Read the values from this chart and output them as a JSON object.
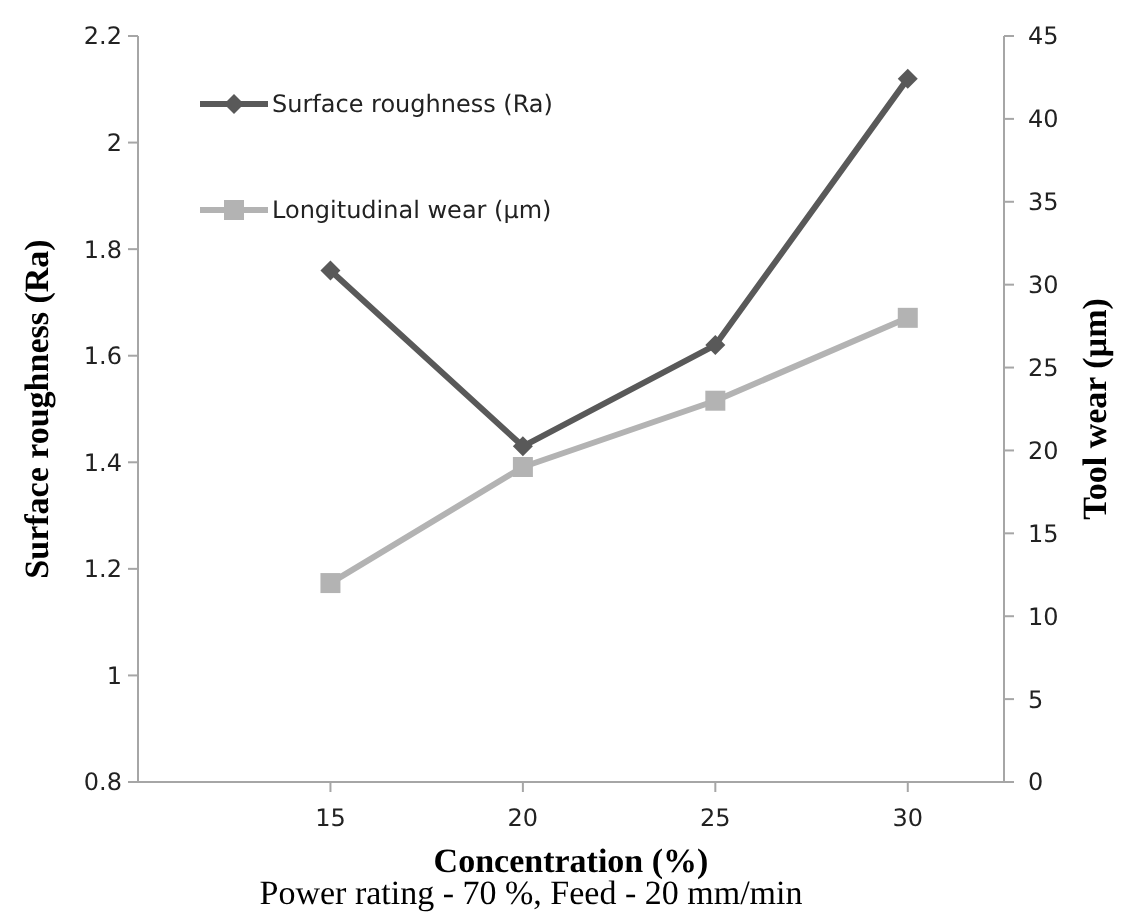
{
  "chart_data": {
    "type": "line",
    "xlabel": "Concentration (%)",
    "ylabel": "Surface roughness (Ra)",
    "y2label": "Tool wear (µm)",
    "x": [
      15,
      20,
      25,
      30
    ],
    "xlim": [
      10,
      32.5
    ],
    "xticks": [
      15,
      20,
      25,
      30
    ],
    "ylim": [
      0.8,
      2.2
    ],
    "yticks": [
      0.8,
      1,
      1.2,
      1.4,
      1.6,
      1.8,
      2,
      2.2
    ],
    "y2lim": [
      0,
      45
    ],
    "y2ticks": [
      0,
      5,
      10,
      15,
      20,
      25,
      30,
      35,
      40,
      45
    ],
    "series": [
      {
        "name": "Surface roughness (Ra)",
        "color": "#595959",
        "values": [
          1.76,
          1.43,
          1.62,
          2.12
        ],
        "marker": "diamond"
      },
      {
        "name": "Longitudinal wear (µm)",
        "color": "#b3b3b3",
        "values": [
          12,
          19,
          23,
          28
        ],
        "axis": "y2",
        "marker": "square"
      }
    ],
    "legend": "top left",
    "grid": false,
    "line_style": "solid",
    "annotations": [
      "Power rating - 70 %, Feed - 20 mm/min"
    ]
  }
}
